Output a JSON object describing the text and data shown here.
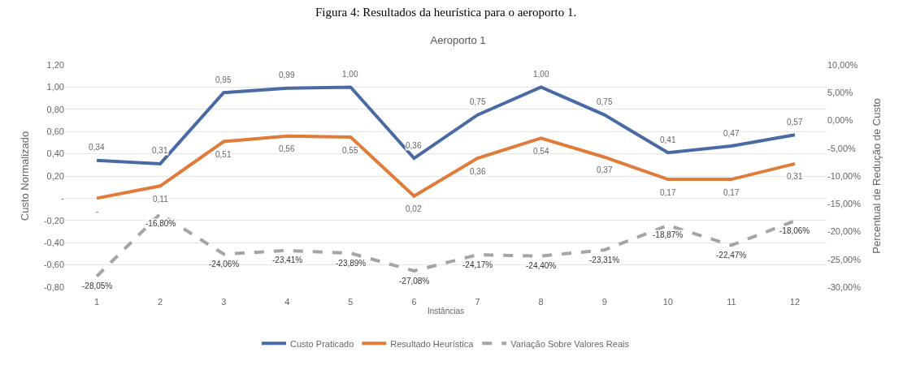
{
  "chart_data": {
    "type": "line",
    "title": "Aeroporto 1",
    "annotations": [
      "Figura 4: Resultados da heurística para o aeroporto 1."
    ],
    "xlabel": "Instâncias",
    "ylabel": "Custo Normalizado",
    "y2label": "Percentual de Redução de Custo",
    "categories": [
      "1",
      "2",
      "3",
      "4",
      "5",
      "6",
      "7",
      "8",
      "9",
      "10",
      "11",
      "12"
    ],
    "series": [
      {
        "name": "Custo Praticado",
        "color": "#4a6aa5",
        "values": [
          0.34,
          0.31,
          0.95,
          0.99,
          1.0,
          0.36,
          0.75,
          1.0,
          0.75,
          0.41,
          0.47,
          0.57
        ],
        "value_labels": [
          "0,34",
          "0,31",
          "0,95",
          "0,99",
          "1,00",
          "0,36",
          "0,75",
          "1,00",
          "0,75",
          "0,41",
          "0,47",
          "0,57"
        ]
      },
      {
        "name": "Resultado Heurística",
        "color": "#e07b39",
        "values": [
          0.0,
          0.11,
          0.51,
          0.56,
          0.55,
          0.02,
          0.36,
          0.54,
          0.37,
          0.17,
          0.17,
          0.31
        ],
        "value_labels": [
          "-",
          "0,11",
          "0,51",
          "0,56",
          "0,55",
          "0,02",
          "0,36",
          "0,54",
          "0,37",
          "0,17",
          "0,17",
          "0,31"
        ]
      },
      {
        "name": "Variação Sobre Valores Reais",
        "color": "#a5a5a5",
        "axis": "y2",
        "line_style": "dashed",
        "values": [
          -28.05,
          -16.8,
          -24.06,
          -23.41,
          -23.89,
          -27.08,
          -24.17,
          -24.4,
          -23.31,
          -18.87,
          -22.47,
          -18.06
        ],
        "value_labels": [
          "-28,05%",
          "-16,80%",
          "-24,06%",
          "-23,41%",
          "-23,89%",
          "-27,08%",
          "-24,17%",
          "-24,40%",
          "-23,31%",
          "-18,87%",
          "-22,47%",
          "-18,06%"
        ]
      }
    ],
    "ylim": [
      -0.8,
      1.2
    ],
    "yticks": [
      {
        "value": -0.8,
        "label": "-0,80"
      },
      {
        "value": -0.6,
        "label": "-0,60"
      },
      {
        "value": -0.4,
        "label": "-0,40"
      },
      {
        "value": -0.2,
        "label": "-0,20"
      },
      {
        "value": 0,
        "label": "-"
      },
      {
        "value": 0.2,
        "label": "0,20"
      },
      {
        "value": 0.4,
        "label": "0,40"
      },
      {
        "value": 0.6,
        "label": "0,60"
      },
      {
        "value": 0.8,
        "label": "0,80"
      },
      {
        "value": 1.0,
        "label": "1,00"
      },
      {
        "value": 1.2,
        "label": "1,20"
      }
    ],
    "y2lim": [
      -30,
      10
    ],
    "y2ticks": [
      {
        "value": -30,
        "label": "-30,00%"
      },
      {
        "value": -25,
        "label": "-25,00%"
      },
      {
        "value": -20,
        "label": "-20,00%"
      },
      {
        "value": -15,
        "label": "-15,00%"
      },
      {
        "value": -10,
        "label": "-10,00%"
      },
      {
        "value": -5,
        "label": "-5,00%"
      },
      {
        "value": 0,
        "label": "0,00%"
      },
      {
        "value": 5,
        "label": "5,00%"
      },
      {
        "value": 10,
        "label": "10,00%"
      }
    ],
    "grid": "y",
    "legend": "bottom",
    "marker": "none",
    "line_style": "solid"
  }
}
